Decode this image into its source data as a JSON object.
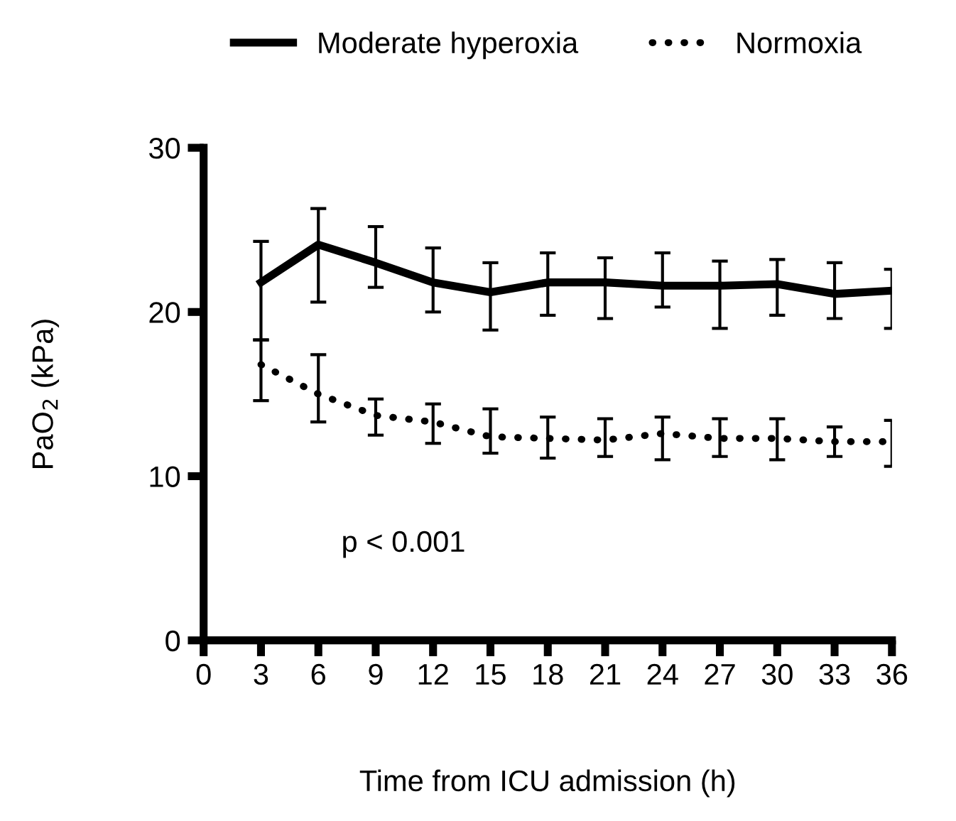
{
  "chart_data": {
    "type": "line",
    "xlabel": "Time from ICU admission (h)",
    "ylabel": "PaO$_{2}$ (kPa)",
    "xlim": [
      0,
      36
    ],
    "xticks": [
      0,
      3,
      6,
      9,
      12,
      15,
      18,
      21,
      24,
      27,
      30,
      33,
      36
    ],
    "ylim": [
      0,
      30
    ],
    "yticks": [
      0,
      10,
      20,
      30
    ],
    "grid": false,
    "legend": "top",
    "marker": "none",
    "annotations": [
      "p < 0.001"
    ],
    "series": [
      {
        "name": "Moderate hyperoxia",
        "color": "#000000",
        "line_style": "solid",
        "x": [
          3,
          6,
          9,
          12,
          15,
          18,
          21,
          24,
          27,
          30,
          33,
          36
        ],
        "values": [
          21.8,
          24.1,
          23.0,
          21.8,
          21.2,
          21.8,
          21.8,
          21.6,
          21.6,
          21.7,
          21.1,
          21.3
        ],
        "errors": [
          [
            18.3,
            24.3
          ],
          [
            20.6,
            26.3
          ],
          [
            21.5,
            25.2
          ],
          [
            20.0,
            23.9
          ],
          [
            18.9,
            23.0
          ],
          [
            19.8,
            23.6
          ],
          [
            19.6,
            23.3
          ],
          [
            20.3,
            23.6
          ],
          [
            19.0,
            23.1
          ],
          [
            19.8,
            23.2
          ],
          [
            19.6,
            23.0
          ],
          [
            19.0,
            22.6
          ]
        ]
      },
      {
        "name": "Normoxia",
        "color": "#000000",
        "line_style": "dotted",
        "x": [
          3,
          6,
          9,
          12,
          15,
          18,
          21,
          24,
          27,
          30,
          33,
          36
        ],
        "values": [
          16.8,
          15.0,
          13.7,
          13.3,
          12.4,
          12.3,
          12.2,
          12.6,
          12.3,
          12.3,
          12.1,
          12.1
        ],
        "errors": [
          [
            14.6,
            18.3
          ],
          [
            13.3,
            17.4
          ],
          [
            12.5,
            14.7
          ],
          [
            12.0,
            14.4
          ],
          [
            11.4,
            14.1
          ],
          [
            11.1,
            13.6
          ],
          [
            11.2,
            13.5
          ],
          [
            11.0,
            13.6
          ],
          [
            11.2,
            13.5
          ],
          [
            11.0,
            13.5
          ],
          [
            11.2,
            13.0
          ],
          [
            10.6,
            13.4
          ]
        ]
      }
    ]
  }
}
